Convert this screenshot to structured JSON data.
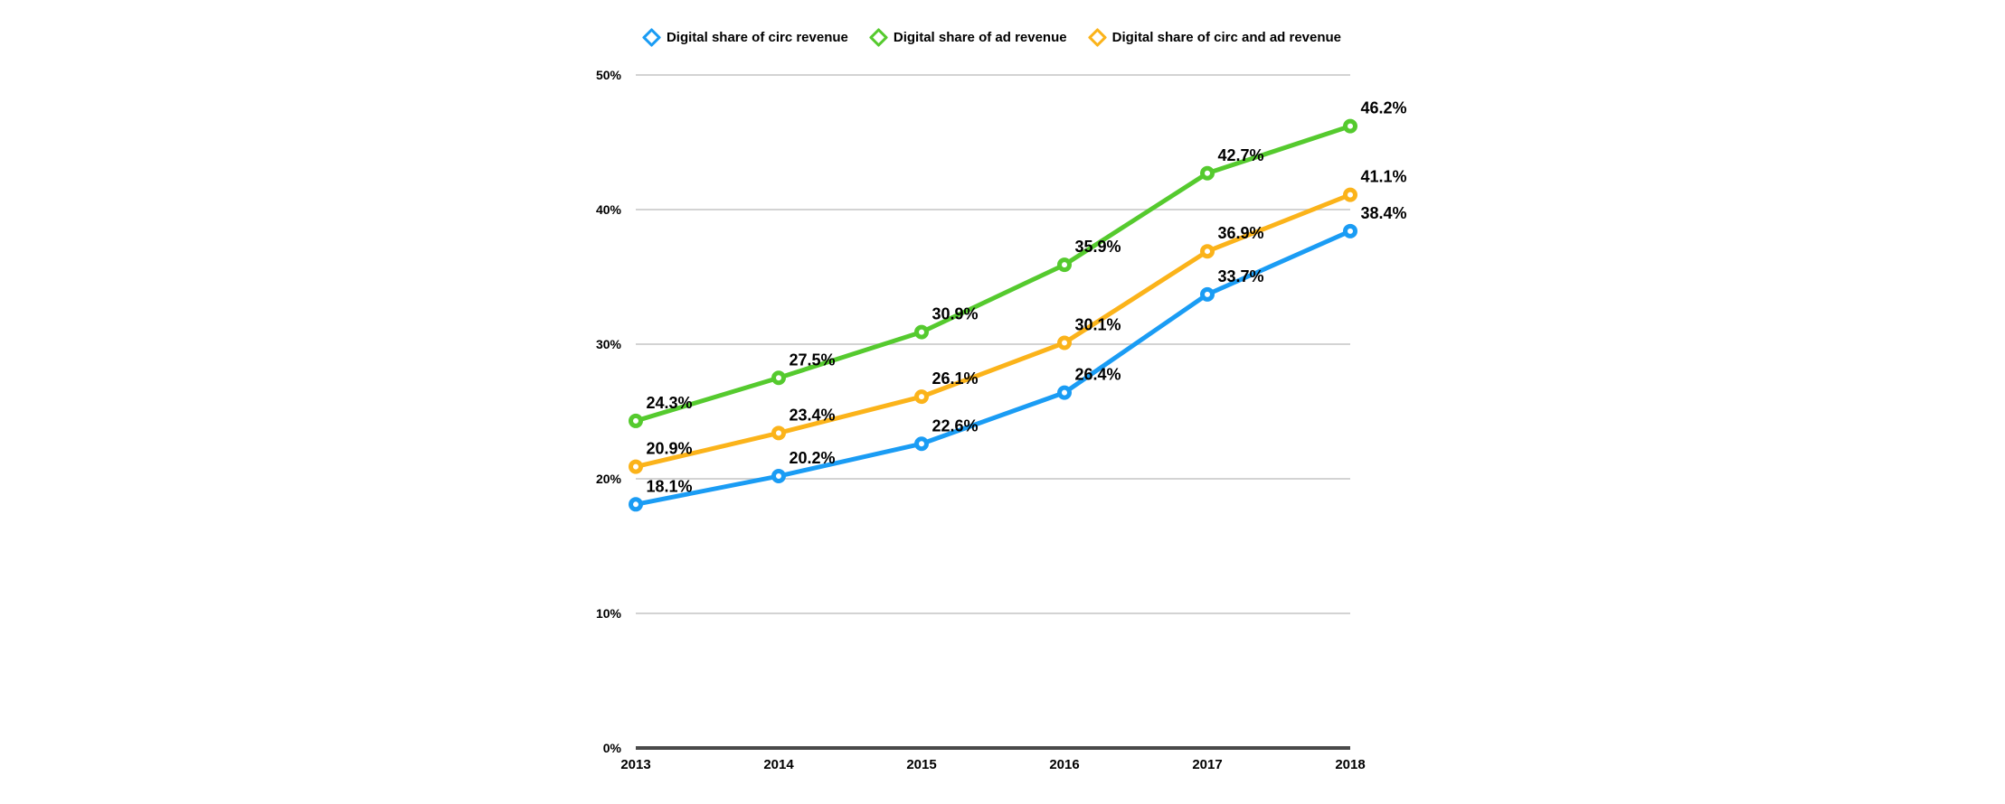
{
  "chart_data": {
    "type": "line",
    "x": [
      "2013",
      "2014",
      "2015",
      "2016",
      "2017",
      "2018"
    ],
    "series": [
      {
        "name": "Digital share of circ revenue",
        "color": "#1A9CF4",
        "values": [
          18.1,
          20.2,
          22.6,
          26.4,
          33.7,
          38.4
        ]
      },
      {
        "name": "Digital share of ad revenue",
        "color": "#55CA2E",
        "values": [
          24.3,
          27.5,
          30.9,
          35.9,
          42.7,
          46.2
        ]
      },
      {
        "name": "Digital share of circ and ad revenue",
        "color": "#FBB31A",
        "values": [
          20.9,
          23.4,
          26.1,
          30.1,
          36.9,
          41.1
        ]
      }
    ],
    "title": "",
    "xlabel": "",
    "ylabel": "",
    "ylim": [
      0,
      50
    ],
    "yticks": [
      0,
      10,
      20,
      30,
      40,
      50
    ],
    "ytick_labels": [
      "0%",
      "10%",
      "20%",
      "30%",
      "40%",
      "50%"
    ],
    "data_label_suffix": "%",
    "grid": true,
    "legend_position": "top",
    "marker_shape_plot": "ring-circle",
    "marker_shape_legend": "hollow-diamond"
  },
  "colors": {
    "background": "#FFFFFF",
    "gridline": "#CDCDCD",
    "axis": "#4A4A4A",
    "text": "#000000"
  }
}
